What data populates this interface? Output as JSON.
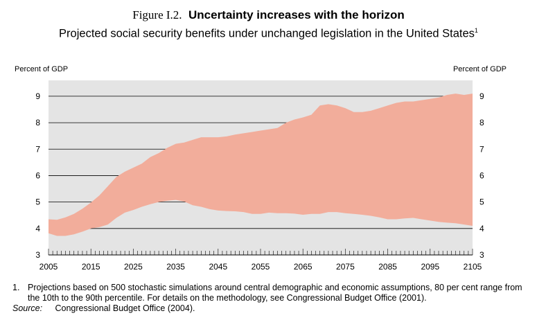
{
  "header": {
    "figure_label": "Figure I.2.",
    "title": "Uncertainty increases with the horizon",
    "subtitle": "Projected social security benefits under unchanged legislation in the United States",
    "subtitle_note_marker": "1"
  },
  "chart_data": {
    "type": "area",
    "ylabel_left": "Percent of GDP",
    "ylabel_right": "Percent of GDP",
    "ylim": [
      3,
      9.6
    ],
    "yticks": [
      3,
      4,
      5,
      6,
      7,
      8,
      9
    ],
    "xlim": [
      2005,
      2105
    ],
    "xticks": [
      2005,
      2015,
      2025,
      2035,
      2045,
      2055,
      2065,
      2075,
      2085,
      2095,
      2105
    ],
    "grid": true,
    "band_color": "#f2ad9b",
    "plot_bg": "#e4e4e4",
    "series": [
      {
        "name": "90th percentile",
        "x": [
          2005,
          2007,
          2009,
          2011,
          2013,
          2015,
          2017,
          2019,
          2021,
          2023,
          2025,
          2027,
          2029,
          2031,
          2033,
          2035,
          2037,
          2039,
          2041,
          2043,
          2045,
          2047,
          2049,
          2051,
          2053,
          2055,
          2057,
          2059,
          2061,
          2063,
          2065,
          2067,
          2069,
          2071,
          2073,
          2075,
          2077,
          2079,
          2081,
          2083,
          2085,
          2087,
          2089,
          2091,
          2093,
          2095,
          2097,
          2099,
          2101,
          2103,
          2105
        ],
        "y": [
          4.35,
          4.33,
          4.42,
          4.55,
          4.75,
          4.98,
          5.25,
          5.6,
          5.95,
          6.15,
          6.3,
          6.45,
          6.7,
          6.85,
          7.05,
          7.2,
          7.25,
          7.35,
          7.45,
          7.45,
          7.45,
          7.48,
          7.55,
          7.6,
          7.65,
          7.7,
          7.75,
          7.8,
          8.0,
          8.12,
          8.2,
          8.3,
          8.65,
          8.7,
          8.65,
          8.55,
          8.4,
          8.4,
          8.45,
          8.55,
          8.65,
          8.75,
          8.8,
          8.8,
          8.85,
          8.9,
          8.95,
          9.05,
          9.1,
          9.05,
          9.1
        ]
      },
      {
        "name": "10th percentile",
        "x": [
          2005,
          2007,
          2009,
          2011,
          2013,
          2015,
          2017,
          2019,
          2021,
          2023,
          2025,
          2027,
          2029,
          2031,
          2033,
          2035,
          2037,
          2039,
          2041,
          2043,
          2045,
          2047,
          2049,
          2051,
          2053,
          2055,
          2057,
          2059,
          2061,
          2063,
          2065,
          2067,
          2069,
          2071,
          2073,
          2075,
          2077,
          2079,
          2081,
          2083,
          2085,
          2087,
          2089,
          2091,
          2093,
          2095,
          2097,
          2099,
          2101,
          2103,
          2105
        ],
        "y": [
          3.82,
          3.72,
          3.72,
          3.78,
          3.88,
          4.0,
          4.05,
          4.15,
          4.4,
          4.6,
          4.7,
          4.82,
          4.92,
          5.0,
          5.05,
          5.08,
          5.02,
          4.88,
          4.82,
          4.73,
          4.68,
          4.66,
          4.65,
          4.62,
          4.55,
          4.55,
          4.6,
          4.58,
          4.58,
          4.56,
          4.52,
          4.55,
          4.55,
          4.62,
          4.62,
          4.58,
          4.55,
          4.52,
          4.48,
          4.42,
          4.35,
          4.35,
          4.38,
          4.4,
          4.35,
          4.3,
          4.25,
          4.22,
          4.2,
          4.15,
          4.1
        ]
      }
    ]
  },
  "footnotes": {
    "note_1_marker": "1.",
    "note_1_text": "Projections based on 500 stochastic simulations around central demographic and economic assumptions, 80 per cent range from the 10th to the 90th percentile. For details on the methodology, see Congressional Budget Office (2001).",
    "source_label": "Source:",
    "source_text": "Congressional Budget Office (2004)."
  }
}
